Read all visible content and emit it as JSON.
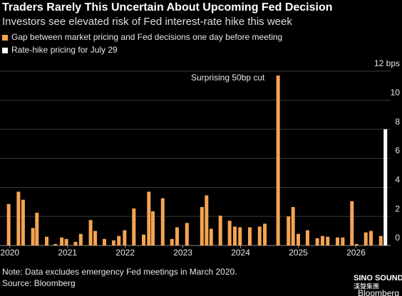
{
  "chart_data": {
    "type": "bar",
    "title": "Traders Rarely This Uncertain About Upcoming Fed Decision",
    "subtitle": "Investors see elevated risk of Fed interest-rate hike this week",
    "annotation": "Surprising 50bp cut",
    "note": "Note: Data excludes emergency Fed meetings in March 2020.",
    "source": "Source: Bloomberg",
    "logo_text": "SINO SOUND",
    "logo_subtext": "漢聲集團",
    "brand": "Bloomberg",
    "xlim": [
      2019.83,
      2026.6
    ],
    "xticks": [
      2020,
      2021,
      2022,
      2023,
      2024,
      2025,
      2026
    ],
    "ylim": [
      0,
      12
    ],
    "yticks": [
      0,
      2,
      4,
      6,
      8,
      10,
      {
        "value": 12,
        "label": "12 bps"
      }
    ],
    "grid": true,
    "series": [
      {
        "name": "Gap between market pricing and Fed decisions one day before meeting",
        "color": "#f5a453",
        "x": [
          2019.98,
          2020.15,
          2020.23,
          2020.4,
          2020.47,
          2020.64,
          2020.79,
          2020.9,
          2020.98,
          2021.14,
          2021.23,
          2021.4,
          2021.48,
          2021.64,
          2021.8,
          2021.89,
          2021.99,
          2022.15,
          2022.32,
          2022.41,
          2022.48,
          2022.65,
          2022.81,
          2022.9,
          2023.07,
          2023.33,
          2023.41,
          2023.49,
          2023.65,
          2023.81,
          2023.9,
          2023.99,
          2024.16,
          2024.33,
          2024.42,
          2024.65,
          2024.83,
          2024.91,
          2025.0,
          2025.16,
          2025.33,
          2025.42,
          2025.51,
          2025.68,
          2025.77,
          2025.93,
          2026.01,
          2026.17,
          2026.26,
          2026.43
        ],
        "values": [
          2.85,
          3.7,
          3.15,
          1.2,
          2.25,
          0.6,
          0.1,
          0.55,
          0.45,
          0.25,
          0.8,
          1.75,
          1.0,
          0.45,
          0.35,
          0.65,
          1.05,
          2.55,
          0.75,
          3.7,
          2.35,
          3.25,
          0.45,
          1.25,
          1.55,
          2.65,
          3.45,
          1.15,
          2.05,
          1.7,
          1.3,
          1.25,
          1.25,
          1.3,
          1.5,
          11.7,
          2.0,
          2.65,
          0.8,
          1.05,
          0.5,
          0.65,
          0.6,
          0.55,
          0.55,
          3.05,
          0.1,
          0.9,
          1.0,
          0.65
        ]
      },
      {
        "name": "Rate-hike pricing for July 29",
        "color": "#ffffff",
        "x": [
          2026.51
        ],
        "values": [
          8.0
        ]
      }
    ]
  }
}
